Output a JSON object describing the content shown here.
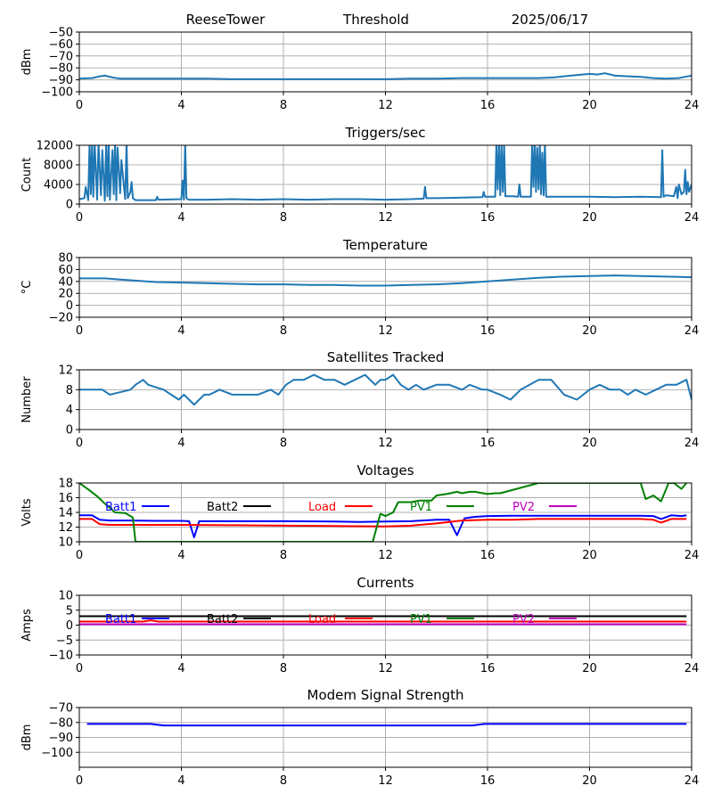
{
  "header": {
    "station": "ReeseTower",
    "mode": "Threshold",
    "date": "2025/06/17"
  },
  "colors": {
    "default_line": "#1f77b4",
    "grid": "#b0b0b0",
    "batt1": "#0000ff",
    "batt2": "#000000",
    "load": "#ff0000",
    "pv1": "#008000",
    "pv2": "#bf00bf"
  },
  "chart_data": [
    {
      "type": "line",
      "title": "",
      "xlabel": "",
      "ylabel": "dBm",
      "xlim": [
        0,
        24
      ],
      "ylim": [
        -100,
        -50
      ],
      "xticks": [
        0,
        4,
        8,
        12,
        16,
        20,
        24
      ],
      "yticks": [
        -100,
        -90,
        -80,
        -70,
        -60,
        -50
      ],
      "grid": true,
      "series": [
        {
          "color": "default_line",
          "x": [
            0,
            0.5,
            0.8,
            1.0,
            1.3,
            1.6,
            2,
            3,
            4,
            5,
            6,
            7,
            8,
            9,
            10,
            11,
            12,
            13,
            14,
            15,
            16,
            16.5,
            17,
            18,
            18.6,
            19,
            19.5,
            20,
            20.3,
            20.6,
            21,
            21.5,
            22,
            22.5,
            23,
            23.5,
            24
          ],
          "y": [
            -89,
            -88.5,
            -87,
            -86.5,
            -88,
            -89,
            -89,
            -89,
            -89,
            -89,
            -89.5,
            -89.5,
            -89.5,
            -89.5,
            -89.5,
            -89.5,
            -89.5,
            -89,
            -89,
            -88.5,
            -88.5,
            -88.5,
            -88.5,
            -88.5,
            -88,
            -87,
            -86,
            -85,
            -85.5,
            -84.5,
            -86.5,
            -87,
            -87.5,
            -88.5,
            -89,
            -88.5,
            -86.5
          ]
        }
      ]
    },
    {
      "type": "line",
      "title": "Triggers/sec",
      "xlabel": "",
      "ylabel": "Count",
      "xlim": [
        0,
        24
      ],
      "ylim": [
        0,
        12000
      ],
      "xticks": [
        0,
        4,
        8,
        12,
        16,
        20,
        24
      ],
      "yticks": [
        0,
        4000,
        8000,
        12000
      ],
      "grid": true,
      "series": [
        {
          "color": "default_line",
          "x": [
            0,
            0.2,
            0.25,
            0.35,
            0.4,
            0.45,
            0.5,
            0.55,
            0.6,
            0.7,
            0.75,
            0.85,
            0.9,
            1.0,
            1.05,
            1.1,
            1.15,
            1.2,
            1.3,
            1.35,
            1.4,
            1.45,
            1.5,
            1.6,
            1.65,
            1.8,
            1.85,
            1.9,
            2.0,
            2.05,
            2.1,
            2.2,
            3,
            3.05,
            3.1,
            4.0,
            4.05,
            4.1,
            4.15,
            4.2,
            4.25,
            4.3,
            5,
            6,
            7,
            8,
            9,
            10,
            11,
            12,
            13,
            13.5,
            13.55,
            13.6,
            14,
            15,
            15.8,
            15.85,
            15.9,
            16.3,
            16.35,
            16.4,
            16.45,
            16.5,
            16.55,
            16.6,
            16.65,
            16.7,
            17,
            17.2,
            17.25,
            17.3,
            17.7,
            17.75,
            17.8,
            17.85,
            17.9,
            17.95,
            18.0,
            18.05,
            18.1,
            18.15,
            18.2,
            18.25,
            18.3,
            18.5,
            19,
            20,
            21,
            22,
            22.8,
            22.85,
            22.9,
            23,
            23.3,
            23.4,
            23.45,
            23.5,
            23.6,
            23.7,
            23.75,
            23.8,
            23.85,
            23.9,
            24
          ],
          "y": [
            1000,
            1200,
            3500,
            800,
            12500,
            2000,
            12500,
            1500,
            12500,
            900,
            12500,
            1800,
            11000,
            700,
            12500,
            1600,
            12500,
            900,
            11000,
            2000,
            12500,
            800,
            11500,
            2200,
            9000,
            1000,
            12500,
            1200,
            2500,
            4500,
            1200,
            800,
            800,
            1500,
            900,
            1000,
            4800,
            900,
            12500,
            1200,
            1000,
            900,
            900,
            1000,
            900,
            1000,
            900,
            1000,
            1000,
            900,
            1000,
            1100,
            3500,
            1200,
            1200,
            1300,
            1400,
            2500,
            1500,
            1500,
            12500,
            3000,
            12500,
            1800,
            12500,
            2500,
            12500,
            1600,
            1600,
            1500,
            4000,
            1500,
            1500,
            12500,
            3500,
            12500,
            2500,
            11500,
            3000,
            12500,
            2000,
            10500,
            1800,
            12500,
            1500,
            1500,
            1500,
            1500,
            1400,
            1500,
            1400,
            11000,
            1500,
            1800,
            1600,
            3500,
            1200,
            4000,
            2000,
            2500,
            7000,
            2000,
            4500,
            2500,
            4000
          ]
        }
      ]
    },
    {
      "type": "line",
      "title": "Temperature",
      "xlabel": "",
      "ylabel": "°C",
      "xlim": [
        0,
        24
      ],
      "ylim": [
        -20,
        80
      ],
      "xticks": [
        0,
        4,
        8,
        12,
        16,
        20,
        24
      ],
      "yticks": [
        -20,
        0,
        20,
        40,
        60,
        80
      ],
      "grid": true,
      "series": [
        {
          "color": "default_line",
          "x": [
            0,
            1,
            2,
            3,
            4,
            5,
            6,
            7,
            8,
            9,
            10,
            11,
            12,
            13,
            14,
            15,
            16,
            17,
            18,
            19,
            20,
            21,
            22,
            23,
            24
          ],
          "y": [
            45,
            45,
            42,
            39,
            38,
            37,
            36,
            35,
            35,
            34,
            34,
            33,
            33,
            34,
            35,
            37,
            40,
            43,
            46,
            48,
            49,
            50,
            49,
            48,
            47
          ]
        }
      ]
    },
    {
      "type": "line",
      "title": "Satellites Tracked",
      "xlabel": "",
      "ylabel": "Number",
      "xlim": [
        0,
        24
      ],
      "ylim": [
        0,
        12
      ],
      "xticks": [
        0,
        4,
        8,
        12,
        16,
        20,
        24
      ],
      "yticks": [
        0,
        4,
        8,
        12
      ],
      "grid": true,
      "series": [
        {
          "color": "default_line",
          "x": [
            0,
            0.9,
            1.2,
            2.0,
            2.2,
            2.5,
            2.7,
            3.3,
            3.6,
            3.9,
            4.1,
            4.3,
            4.5,
            4.7,
            4.9,
            5.1,
            5.5,
            6.0,
            7.0,
            7.5,
            7.8,
            8.1,
            8.4,
            8.8,
            9.2,
            9.6,
            10.0,
            10.4,
            10.8,
            11.2,
            11.6,
            11.8,
            12.0,
            12.3,
            12.6,
            12.9,
            13.2,
            13.5,
            14.0,
            14.5,
            15.0,
            15.3,
            15.8,
            16.0,
            16.5,
            16.9,
            17.3,
            18.0,
            18.5,
            19.0,
            19.5,
            20.0,
            20.4,
            20.8,
            21.2,
            21.5,
            21.8,
            22.2,
            22.6,
            23.0,
            23.4,
            23.8,
            24
          ],
          "y": [
            8,
            8,
            7,
            8,
            9,
            10,
            9,
            8,
            7,
            6,
            7,
            6,
            5,
            6,
            7,
            7,
            8,
            7,
            7,
            8,
            7,
            9,
            10,
            10,
            11,
            10,
            10,
            9,
            10,
            11,
            9,
            10,
            10,
            11,
            9,
            8,
            9,
            8,
            9,
            9,
            8,
            9,
            8,
            8,
            7,
            6,
            8,
            10,
            10,
            7,
            6,
            8,
            9,
            8,
            8,
            7,
            8,
            7,
            8,
            9,
            9,
            10,
            6
          ]
        }
      ]
    },
    {
      "type": "line",
      "title": "Voltages",
      "xlabel": "",
      "ylabel": "Volts",
      "xlim": [
        0,
        24
      ],
      "ylim": [
        10,
        18
      ],
      "xticks": [
        0,
        4,
        8,
        12,
        16,
        20,
        24
      ],
      "yticks": [
        10,
        12,
        14,
        16,
        18
      ],
      "grid": true,
      "legend": "inline-top",
      "series": [
        {
          "name": "Batt1",
          "color": "batt1",
          "x": [
            0,
            0.5,
            0.8,
            1.2,
            2,
            3,
            4,
            4.3,
            4.5,
            4.7,
            5,
            6,
            8,
            10,
            11,
            12,
            13,
            14,
            14.5,
            14.8,
            15.1,
            15.5,
            16,
            17,
            18,
            20,
            22,
            22.5,
            22.8,
            23.2,
            23.6,
            23.8
          ],
          "y": [
            13.6,
            13.6,
            13.0,
            12.9,
            12.9,
            12.85,
            12.85,
            12.8,
            10.6,
            12.8,
            12.8,
            12.8,
            12.8,
            12.75,
            12.7,
            12.75,
            12.8,
            13.0,
            13.0,
            10.9,
            13.2,
            13.4,
            13.5,
            13.55,
            13.55,
            13.55,
            13.55,
            13.5,
            13.1,
            13.6,
            13.5,
            13.6
          ]
        },
        {
          "name": "Batt2",
          "color": "batt2",
          "x": [],
          "y": []
        },
        {
          "name": "Load",
          "color": "load",
          "x": [
            0,
            0.5,
            0.8,
            1.2,
            2,
            4,
            6,
            8,
            10,
            12,
            13,
            14,
            15,
            16,
            17,
            18,
            20,
            22,
            22.5,
            22.8,
            23.2,
            23.8
          ],
          "y": [
            13.1,
            13.1,
            12.4,
            12.3,
            12.3,
            12.3,
            12.25,
            12.2,
            12.15,
            12.1,
            12.2,
            12.5,
            12.9,
            13.0,
            13.0,
            13.1,
            13.1,
            13.1,
            13.0,
            12.6,
            13.1,
            13.1
          ],
          "x_note": ""
        },
        {
          "name": "PV1",
          "color": "pv1",
          "x": [
            0,
            0.4,
            0.7,
            1.0,
            1.4,
            1.8,
            2.0,
            2.1,
            2.2,
            11.5,
            11.8,
            12.0,
            12.3,
            12.5,
            13.0,
            13.3,
            13.8,
            14.0,
            14.4,
            14.8,
            15.0,
            15.3,
            15.5,
            16.0,
            16.3,
            16.5,
            18.0,
            21.5,
            22.0,
            22.2,
            22.5,
            22.8,
            23.1,
            23.3,
            23.6,
            23.8
          ],
          "y": [
            18,
            17.0,
            16.2,
            15.2,
            14.0,
            13.9,
            13.5,
            13.3,
            10.0,
            10.0,
            13.8,
            13.5,
            14.0,
            15.4,
            15.4,
            15.6,
            15.6,
            16.3,
            16.5,
            16.8,
            16.6,
            16.8,
            16.8,
            16.5,
            16.6,
            16.6,
            18.0,
            18.0,
            18.0,
            15.8,
            16.3,
            15.5,
            18.0,
            18.0,
            17.2,
            18.0
          ]
        },
        {
          "name": "PV2",
          "color": "pv2",
          "x": [],
          "y": []
        }
      ]
    },
    {
      "type": "line",
      "title": "Currents",
      "xlabel": "",
      "ylabel": "Amps",
      "xlim": [
        0,
        24
      ],
      "ylim": [
        -10,
        10
      ],
      "xticks": [
        0,
        4,
        8,
        12,
        16,
        20,
        24
      ],
      "yticks": [
        -10,
        -5,
        0,
        5,
        10
      ],
      "grid": true,
      "legend": "inline-top",
      "series": [
        {
          "name": "Batt1",
          "color": "batt1",
          "x": [],
          "y": []
        },
        {
          "name": "Batt2",
          "color": "batt2",
          "x": [
            0,
            2,
            4,
            6,
            8,
            10,
            12,
            14,
            16,
            18,
            20,
            22,
            23.8
          ],
          "y": [
            3,
            3,
            3,
            3,
            3,
            3,
            3,
            3,
            3,
            3,
            3,
            3,
            3
          ]
        },
        {
          "name": "Load",
          "color": "load",
          "x": [
            0,
            2.5,
            2.8,
            3.1,
            4,
            8,
            12,
            16,
            20,
            23.8
          ],
          "y": [
            1.2,
            1.2,
            1.6,
            1.2,
            1.2,
            1.2,
            1.2,
            1.2,
            1.2,
            1.2
          ]
        },
        {
          "name": "PV1",
          "color": "pv1",
          "x": [],
          "y": []
        },
        {
          "name": "PV2",
          "color": "pv2",
          "x": [
            0,
            4,
            8,
            12,
            16,
            20,
            23.8
          ],
          "y": [
            0.3,
            0.3,
            0.3,
            0.3,
            0.3,
            0.3,
            0.3
          ]
        }
      ]
    },
    {
      "type": "line",
      "title": "Modem Signal Strength",
      "xlabel": "",
      "ylabel": "dBm",
      "xlim": [
        0,
        24
      ],
      "ylim": [
        -110,
        -70
      ],
      "xticks": [
        0,
        4,
        8,
        12,
        16,
        20,
        24
      ],
      "yticks": [
        -100,
        -90,
        -80,
        -70
      ],
      "grid": true,
      "series": [
        {
          "color": "batt1",
          "x": [
            0.3,
            2.8,
            3.3,
            8,
            12,
            15.4,
            15.9,
            20,
            23.8
          ],
          "y": [
            -81,
            -81,
            -82,
            -82,
            -82,
            -82,
            -81,
            -81,
            -81
          ]
        }
      ]
    }
  ]
}
